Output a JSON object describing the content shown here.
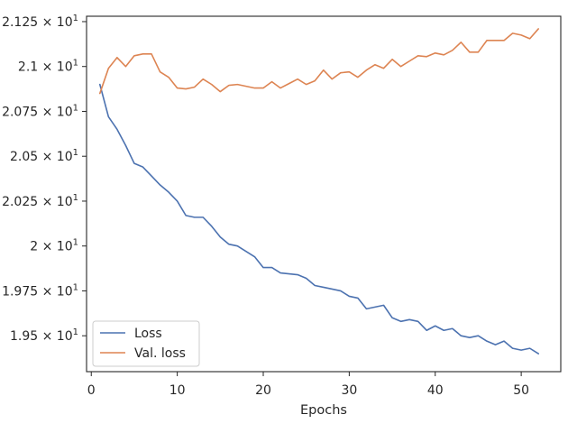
{
  "chart_data": {
    "type": "line",
    "title": "",
    "xlabel": "Epochs",
    "ylabel": "",
    "xlim": [
      -0.55,
      54.6
    ],
    "ylim": [
      19.3,
      21.28
    ],
    "grid": false,
    "legend_position": "lower-left",
    "x_ticks": [
      {
        "value": 0,
        "label": "0"
      },
      {
        "value": 10,
        "label": "10"
      },
      {
        "value": 20,
        "label": "20"
      },
      {
        "value": 30,
        "label": "30"
      },
      {
        "value": 40,
        "label": "40"
      },
      {
        "value": 50,
        "label": "50"
      }
    ],
    "y_ticks": [
      {
        "value": 19.5,
        "mantissa": "1.95",
        "exp": "1"
      },
      {
        "value": 19.75,
        "mantissa": "1.975",
        "exp": "1"
      },
      {
        "value": 20.0,
        "mantissa": "2",
        "exp": "1"
      },
      {
        "value": 20.25,
        "mantissa": "2.025",
        "exp": "1"
      },
      {
        "value": 20.5,
        "mantissa": "2.05",
        "exp": "1"
      },
      {
        "value": 20.75,
        "mantissa": "2.075",
        "exp": "1"
      },
      {
        "value": 21.0,
        "mantissa": "2.1",
        "exp": "1"
      },
      {
        "value": 21.25,
        "mantissa": "2.125",
        "exp": "1"
      }
    ],
    "x": [
      1,
      2,
      3,
      4,
      5,
      6,
      7,
      8,
      9,
      10,
      11,
      12,
      13,
      14,
      15,
      16,
      17,
      18,
      19,
      20,
      21,
      22,
      23,
      24,
      25,
      26,
      27,
      28,
      29,
      30,
      31,
      32,
      33,
      34,
      35,
      36,
      37,
      38,
      39,
      40,
      41,
      42,
      43,
      44,
      45,
      46,
      47,
      48,
      49,
      50,
      51,
      52
    ],
    "series": [
      {
        "name": "Loss",
        "color": "#4c72b0",
        "values": [
          20.9,
          20.72,
          20.65,
          20.56,
          20.46,
          20.44,
          20.39,
          20.34,
          20.3,
          20.25,
          20.17,
          20.16,
          20.16,
          20.11,
          20.05,
          20.01,
          20.0,
          19.97,
          19.94,
          19.88,
          19.88,
          19.85,
          19.845,
          19.84,
          19.82,
          19.78,
          19.77,
          19.76,
          19.75,
          19.72,
          19.71,
          19.65,
          19.66,
          19.67,
          19.6,
          19.58,
          19.59,
          19.58,
          19.53,
          19.555,
          19.53,
          19.54,
          19.5,
          19.49,
          19.5,
          19.47,
          19.45,
          19.47,
          19.43,
          19.42,
          19.43,
          19.4
        ]
      },
      {
        "name": "Val. loss",
        "color": "#dd8452",
        "values": [
          20.85,
          20.99,
          21.05,
          21.0,
          21.06,
          21.07,
          21.07,
          20.97,
          20.94,
          20.88,
          20.875,
          20.885,
          20.93,
          20.9,
          20.86,
          20.895,
          20.9,
          20.89,
          20.88,
          20.88,
          20.915,
          20.88,
          20.905,
          20.93,
          20.9,
          20.92,
          20.98,
          20.93,
          20.965,
          20.97,
          20.94,
          20.98,
          21.01,
          20.99,
          21.04,
          21.0,
          21.03,
          21.06,
          21.055,
          21.075,
          21.065,
          21.09,
          21.135,
          21.08,
          21.08,
          21.145,
          21.145,
          21.145,
          21.185,
          21.175,
          21.155,
          21.21
        ]
      }
    ]
  }
}
